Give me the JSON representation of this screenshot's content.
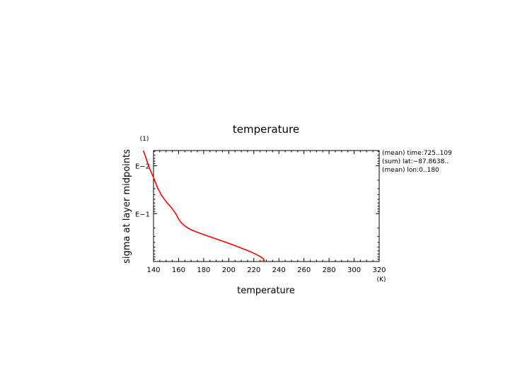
{
  "chart_data": {
    "type": "line",
    "title": "temperature",
    "xlabel": "temperature",
    "xunit": "(K)",
    "ylabel": "sigma at layer midpoints",
    "yunit": "(1)",
    "xlim": [
      140,
      320
    ],
    "x_ticks": [
      140,
      160,
      180,
      200,
      220,
      240,
      260,
      280,
      300,
      320
    ],
    "y_scale": "log",
    "y_axis": "inverted",
    "ylim": [
      0.0048,
      1.0
    ],
    "y_ticks": [
      {
        "value": 0.01,
        "label": "E−2"
      },
      {
        "value": 0.1,
        "label": "E−1"
      }
    ],
    "annotations": [
      "(mean) time:725..109",
      "(sum) lat:−87.8638..",
      "(mean) lon:0..180"
    ],
    "line_color": "#ff0000",
    "series": [
      {
        "x": [
          131.9,
          133.5,
          135.1,
          136.7,
          140.8,
          143.1,
          146.2,
          150.0,
          154.6,
          157.7,
          160.0,
          162.3,
          165.4,
          169.2,
          174.6,
          180.8,
          189.2,
          197.7,
          205.4,
          213.1,
          219.2,
          223.8,
          226.9,
          228.1,
          228.3,
          227.5,
          225.8
        ],
        "y": [
          0.0048,
          0.0063,
          0.0084,
          0.0112,
          0.0196,
          0.0283,
          0.0408,
          0.0559,
          0.0766,
          0.1,
          0.129,
          0.156,
          0.184,
          0.212,
          0.243,
          0.278,
          0.331,
          0.395,
          0.471,
          0.562,
          0.655,
          0.753,
          0.841,
          0.913,
          0.948,
          0.975,
          1.0
        ]
      }
    ]
  }
}
